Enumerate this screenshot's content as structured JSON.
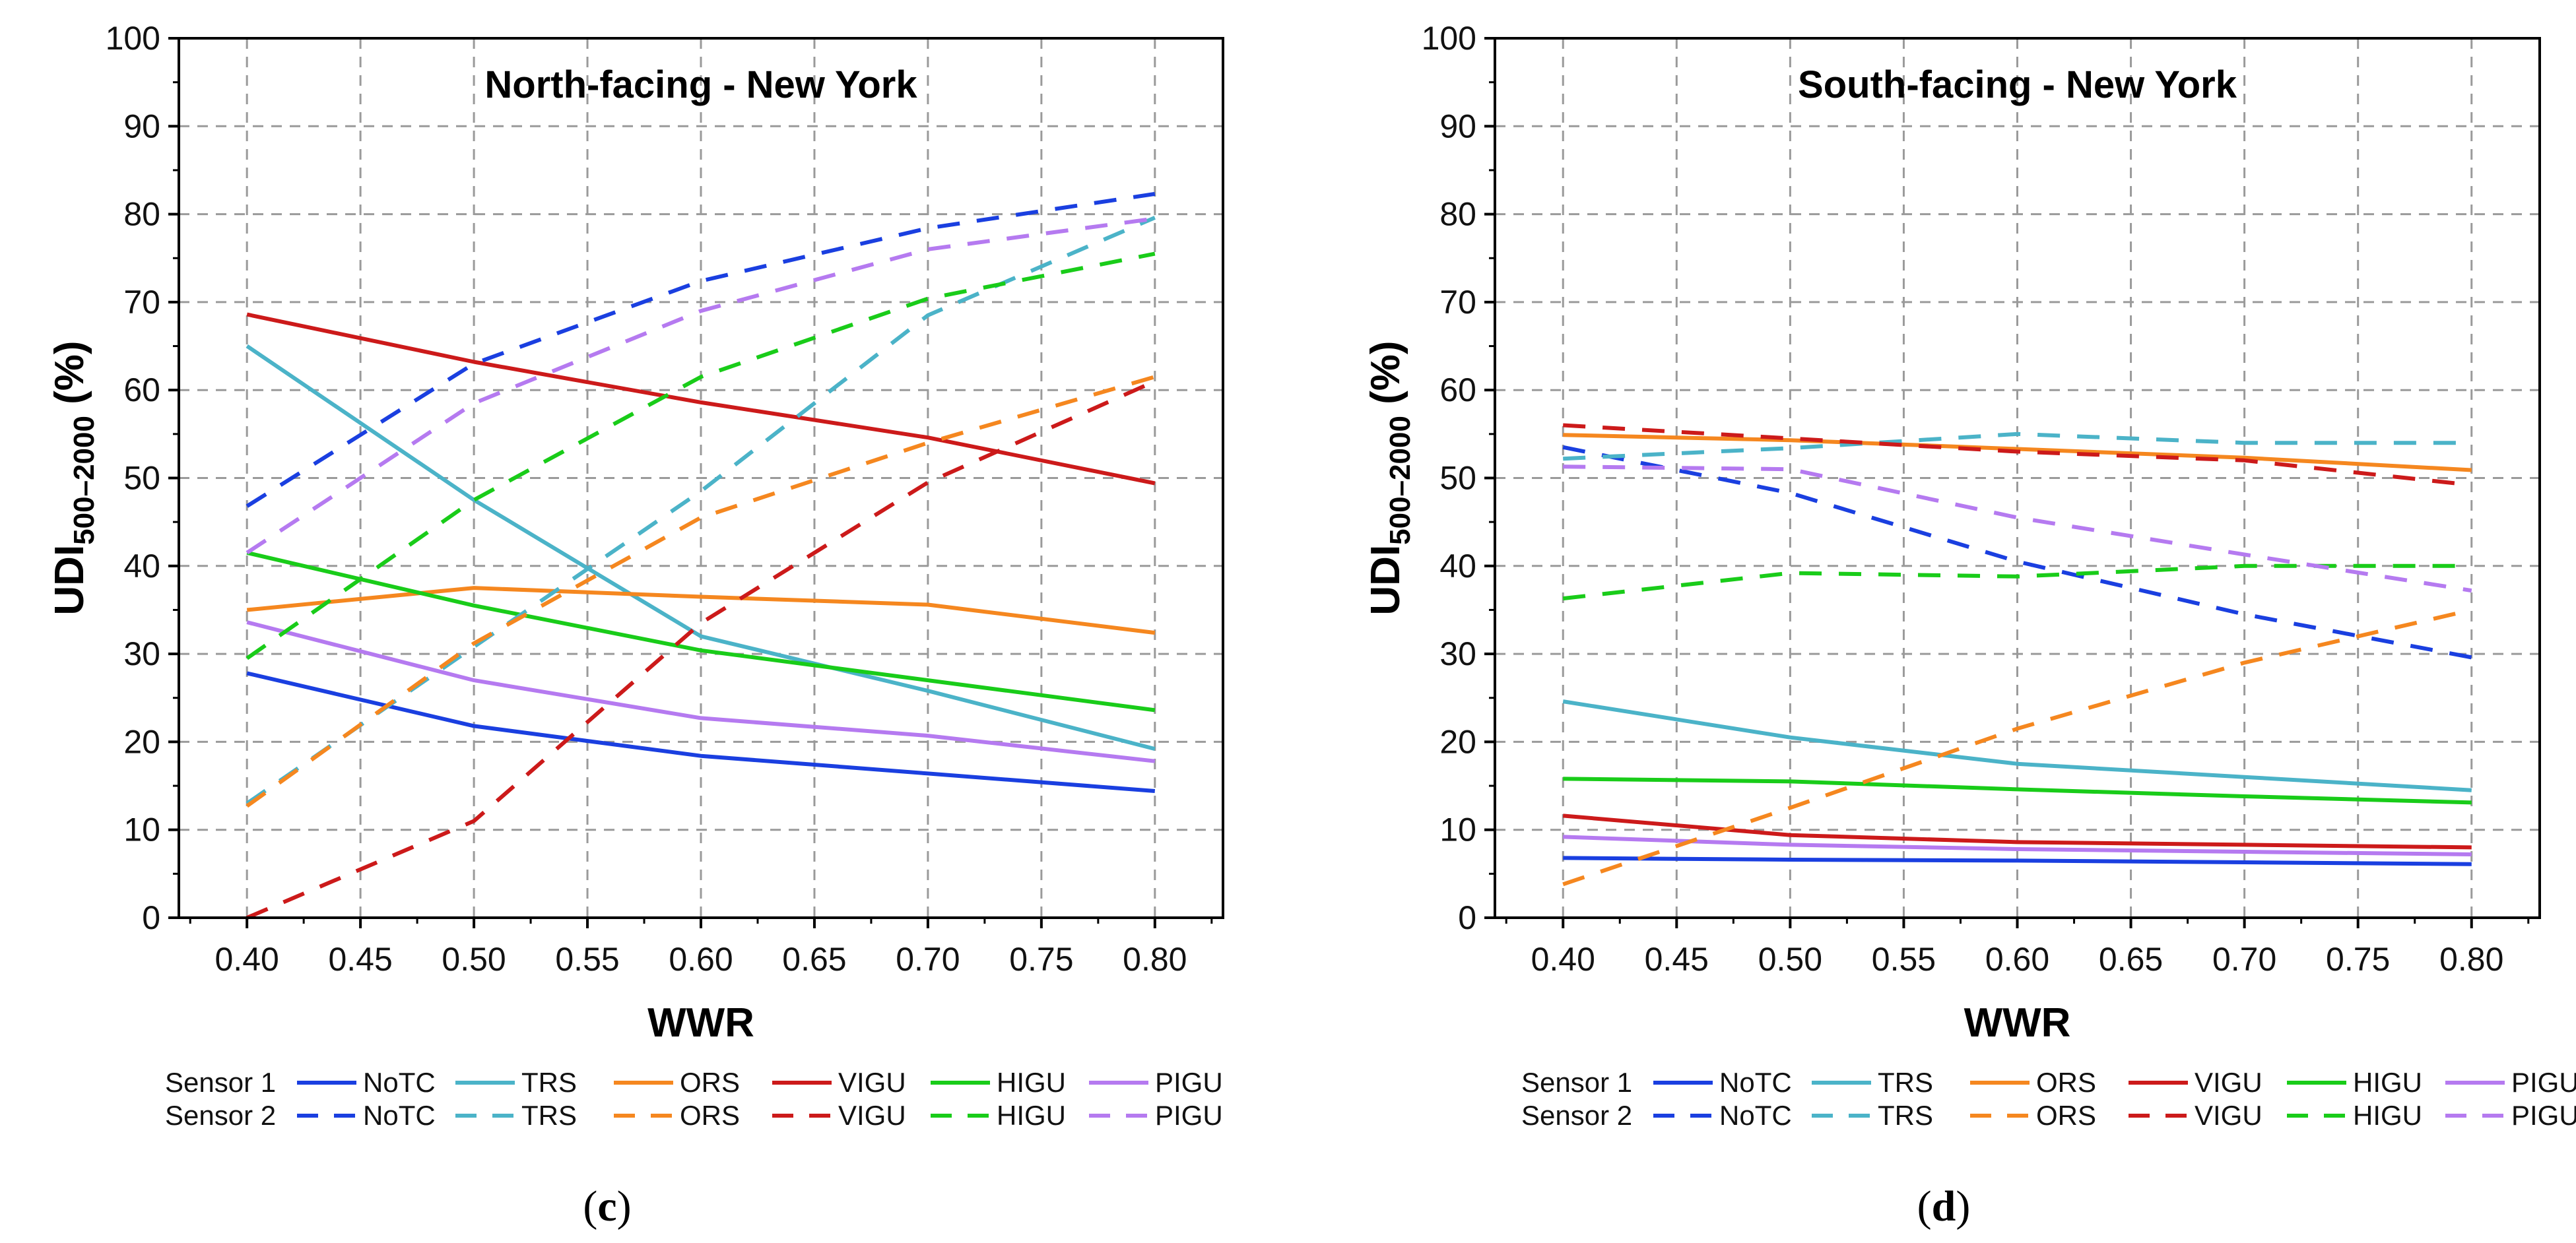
{
  "chart_data": [
    {
      "type": "line",
      "panel": "c",
      "title": "North-facing - New York",
      "xlabel": "WWR",
      "ylabel_main": "UDI",
      "ylabel_sub": "500–2000",
      "ylabel_unit": " (%)",
      "xlim": [
        0.37,
        0.83
      ],
      "ylim": [
        0,
        100
      ],
      "xticks": [
        "0.40",
        "0.45",
        "0.50",
        "0.55",
        "0.60",
        "0.65",
        "0.70",
        "0.75",
        "0.80"
      ],
      "yticks": [
        "0",
        "10",
        "20",
        "30",
        "40",
        "50",
        "60",
        "70",
        "80",
        "90",
        "100"
      ],
      "x": [
        0.4,
        0.5,
        0.6,
        0.7,
        0.8
      ],
      "grid": true,
      "series": [
        {
          "name": "NoTC",
          "sensor": "Sensor 1",
          "color": "#1a3fe0",
          "dashed": false,
          "values": [
            27.8,
            21.8,
            18.4,
            16.4,
            14.4
          ]
        },
        {
          "name": "TRS",
          "sensor": "Sensor 1",
          "color": "#4bb3c8",
          "dashed": false,
          "values": [
            65.0,
            47.5,
            32.0,
            25.8,
            19.2
          ]
        },
        {
          "name": "ORS",
          "sensor": "Sensor 1",
          "color": "#f5871f",
          "dashed": false,
          "values": [
            35.0,
            37.5,
            36.5,
            35.6,
            32.4
          ]
        },
        {
          "name": "VIGU",
          "sensor": "Sensor 1",
          "color": "#cc1a1a",
          "dashed": false,
          "values": [
            68.6,
            63.2,
            58.6,
            54.6,
            49.4
          ]
        },
        {
          "name": "HIGU",
          "sensor": "Sensor 1",
          "color": "#19cc19",
          "dashed": false,
          "values": [
            41.5,
            35.5,
            30.4,
            27.0,
            23.6
          ]
        },
        {
          "name": "PIGU",
          "sensor": "Sensor 1",
          "color": "#b57af0",
          "dashed": false,
          "values": [
            33.6,
            27.0,
            22.7,
            20.7,
            17.8
          ]
        },
        {
          "name": "NoTC",
          "sensor": "Sensor 2",
          "color": "#1a3fe0",
          "dashed": true,
          "values": [
            46.8,
            63.0,
            72.4,
            78.4,
            82.3
          ]
        },
        {
          "name": "TRS",
          "sensor": "Sensor 2",
          "color": "#4bb3c8",
          "dashed": true,
          "values": [
            13.0,
            30.8,
            48.5,
            68.5,
            79.6
          ]
        },
        {
          "name": "ORS",
          "sensor": "Sensor 2",
          "color": "#f5871f",
          "dashed": true,
          "values": [
            12.7,
            31.2,
            45.5,
            54.0,
            61.5
          ]
        },
        {
          "name": "VIGU",
          "sensor": "Sensor 2",
          "color": "#cc1a1a",
          "dashed": true,
          "values": [
            0.0,
            11.0,
            33.5,
            49.5,
            61.0
          ]
        },
        {
          "name": "HIGU",
          "sensor": "Sensor 2",
          "color": "#19cc19",
          "dashed": true,
          "values": [
            29.5,
            47.5,
            61.5,
            70.4,
            75.5
          ]
        },
        {
          "name": "PIGU",
          "sensor": "Sensor 2",
          "color": "#b57af0",
          "dashed": true,
          "values": [
            41.5,
            58.5,
            69.0,
            76.0,
            79.5
          ]
        }
      ]
    },
    {
      "type": "line",
      "panel": "d",
      "title": "South-facing - New York",
      "xlabel": "WWR",
      "ylabel_main": "UDI",
      "ylabel_sub": "500–2000",
      "ylabel_unit": " (%)",
      "xlim": [
        0.37,
        0.83
      ],
      "ylim": [
        0,
        100
      ],
      "xticks": [
        "0.40",
        "0.45",
        "0.50",
        "0.55",
        "0.60",
        "0.65",
        "0.70",
        "0.75",
        "0.80"
      ],
      "yticks": [
        "0",
        "10",
        "20",
        "30",
        "40",
        "50",
        "60",
        "70",
        "80",
        "90",
        "100"
      ],
      "x": [
        0.4,
        0.5,
        0.6,
        0.7,
        0.8
      ],
      "grid": true,
      "series": [
        {
          "name": "NoTC",
          "sensor": "Sensor 1",
          "color": "#1a3fe0",
          "dashed": false,
          "values": [
            6.8,
            6.6,
            6.5,
            6.3,
            6.1
          ]
        },
        {
          "name": "TRS",
          "sensor": "Sensor 1",
          "color": "#4bb3c8",
          "dashed": false,
          "values": [
            24.6,
            20.5,
            17.5,
            16.0,
            14.5
          ]
        },
        {
          "name": "ORS",
          "sensor": "Sensor 1",
          "color": "#f5871f",
          "dashed": false,
          "values": [
            54.9,
            54.3,
            53.3,
            52.3,
            50.9
          ]
        },
        {
          "name": "VIGU",
          "sensor": "Sensor 1",
          "color": "#cc1a1a",
          "dashed": false,
          "values": [
            11.6,
            9.4,
            8.6,
            8.3,
            8.0
          ]
        },
        {
          "name": "HIGU",
          "sensor": "Sensor 1",
          "color": "#19cc19",
          "dashed": false,
          "values": [
            15.8,
            15.5,
            14.6,
            13.8,
            13.1
          ]
        },
        {
          "name": "PIGU",
          "sensor": "Sensor 1",
          "color": "#b57af0",
          "dashed": false,
          "values": [
            9.2,
            8.3,
            7.8,
            7.5,
            7.2
          ]
        },
        {
          "name": "NoTC",
          "sensor": "Sensor 2",
          "color": "#1a3fe0",
          "dashed": true,
          "values": [
            53.5,
            48.3,
            40.5,
            34.5,
            29.6
          ]
        },
        {
          "name": "TRS",
          "sensor": "Sensor 2",
          "color": "#4bb3c8",
          "dashed": true,
          "values": [
            52.2,
            53.4,
            55.0,
            54.0,
            54.0
          ]
        },
        {
          "name": "ORS",
          "sensor": "Sensor 2",
          "color": "#f5871f",
          "dashed": true,
          "values": [
            3.8,
            12.5,
            21.5,
            29.0,
            35.0
          ]
        },
        {
          "name": "VIGU",
          "sensor": "Sensor 2",
          "color": "#cc1a1a",
          "dashed": true,
          "values": [
            56.0,
            54.5,
            53.0,
            52.0,
            49.2
          ]
        },
        {
          "name": "HIGU",
          "sensor": "Sensor 2",
          "color": "#19cc19",
          "dashed": true,
          "values": [
            36.3,
            39.2,
            38.8,
            40.0,
            40.0
          ]
        },
        {
          "name": "PIGU",
          "sensor": "Sensor 2",
          "color": "#b57af0",
          "dashed": true,
          "values": [
            51.3,
            51.0,
            45.5,
            41.3,
            37.2
          ]
        }
      ]
    }
  ],
  "legend": {
    "rows": [
      "Sensor 1",
      "Sensor 2"
    ],
    "entries": [
      "NoTC",
      "TRS",
      "ORS",
      "VIGU",
      "HIGU",
      "PIGU"
    ]
  }
}
